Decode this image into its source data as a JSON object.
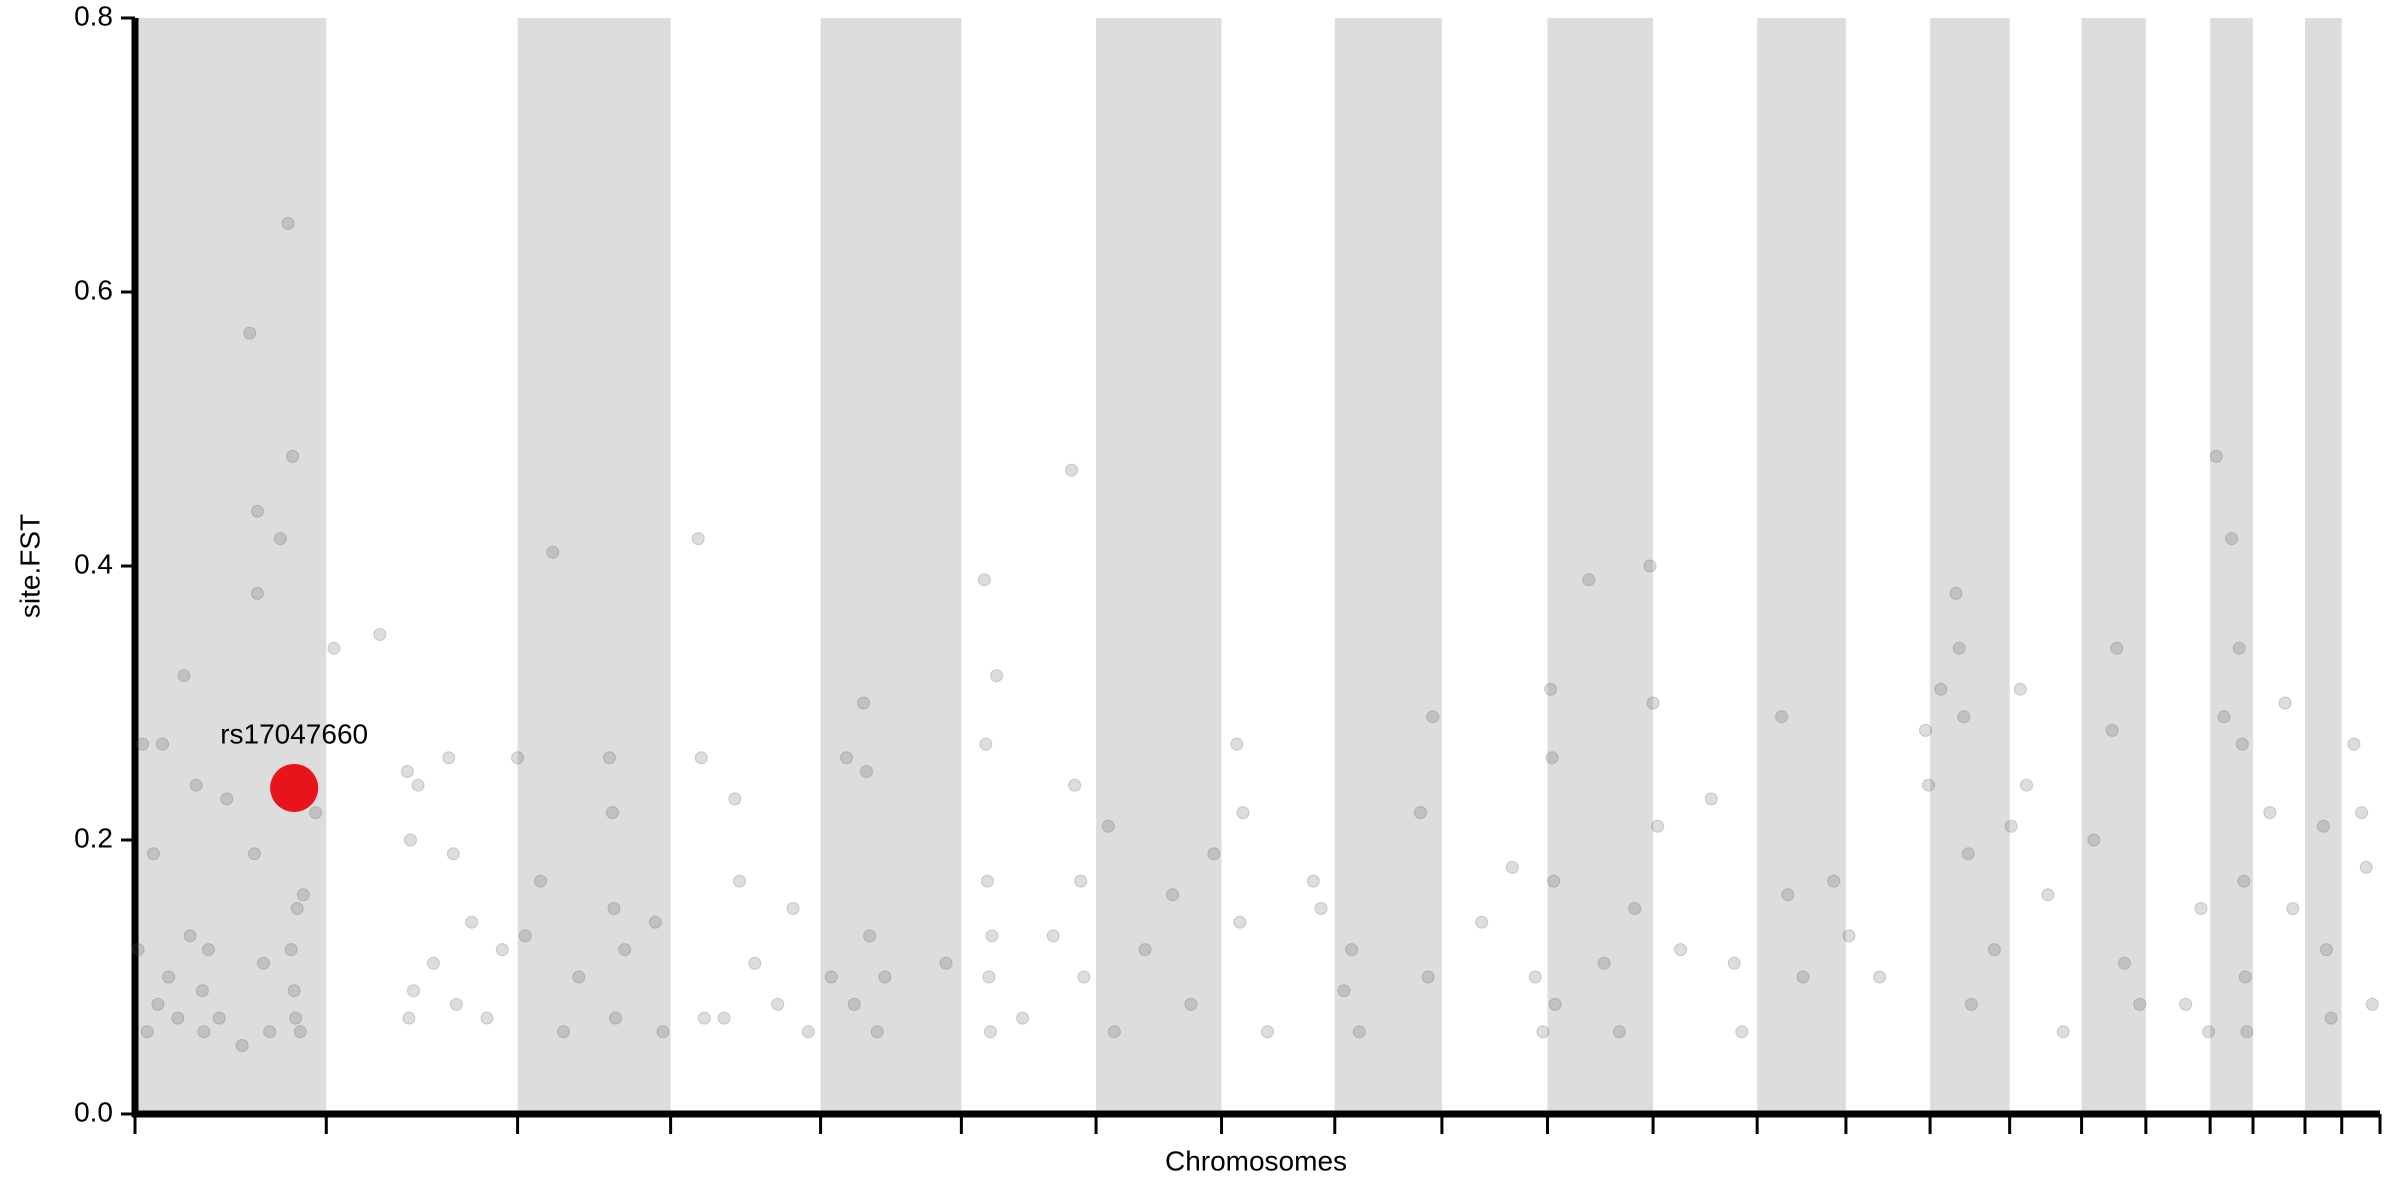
{
  "chart_data": {
    "type": "scatter",
    "xlabel": "Chromosomes",
    "ylabel": "site.FST",
    "xlim": [
      0,
      1467
    ],
    "ylim": [
      0,
      0.8
    ],
    "yticks": [
      {
        "value": 0,
        "label": "0.0"
      },
      0.2,
      0.4,
      0.6,
      0.8
    ],
    "chromosome_bounds": [
      0,
      125,
      250,
      350,
      448,
      540,
      628,
      710,
      784,
      854,
      923,
      992,
      1060,
      1118,
      1173,
      1225,
      1272,
      1314,
      1356,
      1384,
      1418,
      1442,
      1467
    ],
    "band_color": "#dddddd",
    "color": "#555555",
    "x": [
      2,
      5,
      8,
      12,
      15,
      18,
      22,
      28,
      32,
      36,
      40,
      44,
      48,
      55,
      60,
      75,
      78,
      80,
      80,
      84,
      88,
      95,
      100,
      103,
      104,
      105,
      106,
      108,
      110,
      118,
      45,
      70,
      102,
      130,
      160,
      178,
      179,
      180,
      182,
      185,
      195,
      205,
      208,
      210,
      220,
      230,
      240,
      250,
      255,
      265,
      273,
      280,
      290,
      310,
      312,
      313,
      314,
      320,
      340,
      345,
      368,
      370,
      372,
      385,
      392,
      395,
      405,
      420,
      430,
      440,
      455,
      465,
      470,
      476,
      478,
      480,
      485,
      490,
      530,
      555,
      556,
      557,
      558,
      559,
      560,
      563,
      580,
      600,
      612,
      614,
      618,
      620,
      636,
      640,
      660,
      678,
      690,
      705,
      720,
      722,
      724,
      740,
      770,
      775,
      790,
      795,
      800,
      840,
      848,
      845,
      880,
      900,
      915,
      920,
      925,
      926,
      927,
      928,
      950,
      960,
      970,
      980,
      990,
      992,
      995,
      1010,
      1030,
      1045,
      1050,
      1076,
      1080,
      1090,
      1110,
      1120,
      1140,
      1170,
      1172,
      1180,
      1190,
      1192,
      1195,
      1198,
      1200,
      1215,
      1226,
      1232,
      1236,
      1250,
      1260,
      1280,
      1292,
      1295,
      1300,
      1310,
      1340,
      1350,
      1355,
      1360,
      1365,
      1370,
      1375,
      1377,
      1378,
      1379,
      1380,
      1395,
      1405,
      1410,
      1430,
      1432,
      1435,
      1450,
      1455,
      1458,
      1462
    ],
    "values": [
      0.12,
      0.27,
      0.06,
      0.19,
      0.08,
      0.27,
      0.1,
      0.07,
      0.32,
      0.13,
      0.24,
      0.09,
      0.12,
      0.07,
      0.23,
      0.57,
      0.19,
      0.44,
      0.38,
      0.11,
      0.06,
      0.42,
      0.65,
      0.48,
      0.09,
      0.07,
      0.15,
      0.06,
      0.16,
      0.22,
      0.06,
      0.05,
      0.12,
      0.34,
      0.35,
      0.25,
      0.07,
      0.2,
      0.09,
      0.24,
      0.11,
      0.26,
      0.19,
      0.08,
      0.14,
      0.07,
      0.12,
      0.26,
      0.13,
      0.17,
      0.41,
      0.06,
      0.1,
      0.26,
      0.22,
      0.15,
      0.07,
      0.12,
      0.14,
      0.06,
      0.42,
      0.26,
      0.07,
      0.07,
      0.23,
      0.17,
      0.11,
      0.08,
      0.15,
      0.06,
      0.1,
      0.26,
      0.08,
      0.3,
      0.25,
      0.13,
      0.06,
      0.1,
      0.11,
      0.39,
      0.27,
      0.17,
      0.1,
      0.06,
      0.13,
      0.32,
      0.07,
      0.13,
      0.47,
      0.24,
      0.17,
      0.1,
      0.21,
      0.06,
      0.12,
      0.16,
      0.08,
      0.19,
      0.27,
      0.14,
      0.22,
      0.06,
      0.17,
      0.15,
      0.09,
      0.12,
      0.06,
      0.22,
      0.29,
      0.1,
      0.14,
      0.18,
      0.1,
      0.06,
      0.31,
      0.26,
      0.17,
      0.08,
      0.39,
      0.11,
      0.06,
      0.15,
      0.4,
      0.3,
      0.21,
      0.12,
      0.23,
      0.11,
      0.06,
      0.29,
      0.16,
      0.1,
      0.17,
      0.13,
      0.1,
      0.28,
      0.24,
      0.31,
      0.38,
      0.34,
      0.29,
      0.19,
      0.08,
      0.12,
      0.21,
      0.31,
      0.24,
      0.16,
      0.06,
      0.2,
      0.28,
      0.34,
      0.11,
      0.08,
      0.08,
      0.15,
      0.06,
      0.48,
      0.29,
      0.42,
      0.34,
      0.27,
      0.17,
      0.1,
      0.06,
      0.22,
      0.3,
      0.15,
      0.21,
      0.12,
      0.07,
      0.27,
      0.22,
      0.18,
      0.08
    ],
    "highlight": {
      "label": "rs17047660",
      "x": 104,
      "value": 0.238,
      "color": "#e8141b"
    }
  }
}
